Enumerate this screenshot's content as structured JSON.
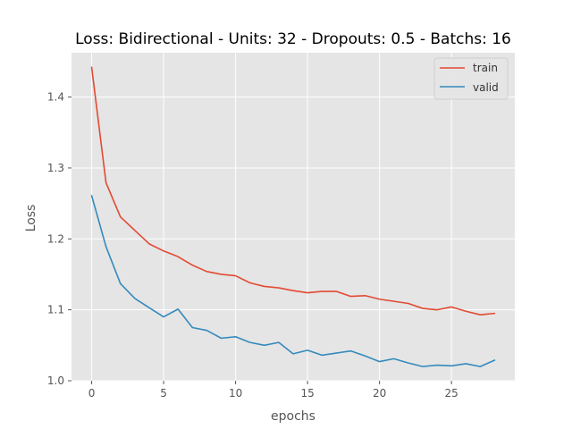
{
  "chart_data": {
    "type": "line",
    "title": "Loss: Bidirectional - Units: 32 - Dropouts: 0.5 - Batchs: 16",
    "xlabel": "epochs",
    "ylabel": "Loss",
    "xlim": [
      -1.4,
      29.4
    ],
    "ylim": [
      1.0,
      1.4625
    ],
    "xticks": [
      0,
      5,
      10,
      15,
      20,
      25
    ],
    "yticks": [
      1.0,
      1.1,
      1.2,
      1.3,
      1.4
    ],
    "xtick_labels": [
      "0",
      "5",
      "10",
      "15",
      "20",
      "25"
    ],
    "ytick_labels": [
      "1.0",
      "1.1",
      "1.2",
      "1.3",
      "1.4"
    ],
    "grid": true,
    "legend_position": "top-right",
    "x": [
      0,
      1,
      2,
      3,
      4,
      5,
      6,
      7,
      8,
      9,
      10,
      11,
      12,
      13,
      14,
      15,
      16,
      17,
      18,
      19,
      20,
      21,
      22,
      23,
      24,
      25,
      26,
      27,
      28
    ],
    "series": [
      {
        "name": "train",
        "color": "#E24A33",
        "values": [
          1.442,
          1.279,
          1.231,
          1.212,
          1.193,
          1.183,
          1.175,
          1.163,
          1.154,
          1.15,
          1.148,
          1.138,
          1.133,
          1.131,
          1.127,
          1.124,
          1.126,
          1.126,
          1.119,
          1.12,
          1.115,
          1.112,
          1.109,
          1.102,
          1.1,
          1.104,
          1.098,
          1.093,
          1.095
        ]
      },
      {
        "name": "valid",
        "color": "#348ABD",
        "values": [
          1.261,
          1.189,
          1.137,
          1.116,
          1.103,
          1.09,
          1.101,
          1.075,
          1.071,
          1.06,
          1.062,
          1.054,
          1.05,
          1.054,
          1.038,
          1.043,
          1.036,
          1.039,
          1.042,
          1.035,
          1.027,
          1.031,
          1.025,
          1.02,
          1.022,
          1.021,
          1.024,
          1.02,
          1.029
        ]
      }
    ]
  }
}
